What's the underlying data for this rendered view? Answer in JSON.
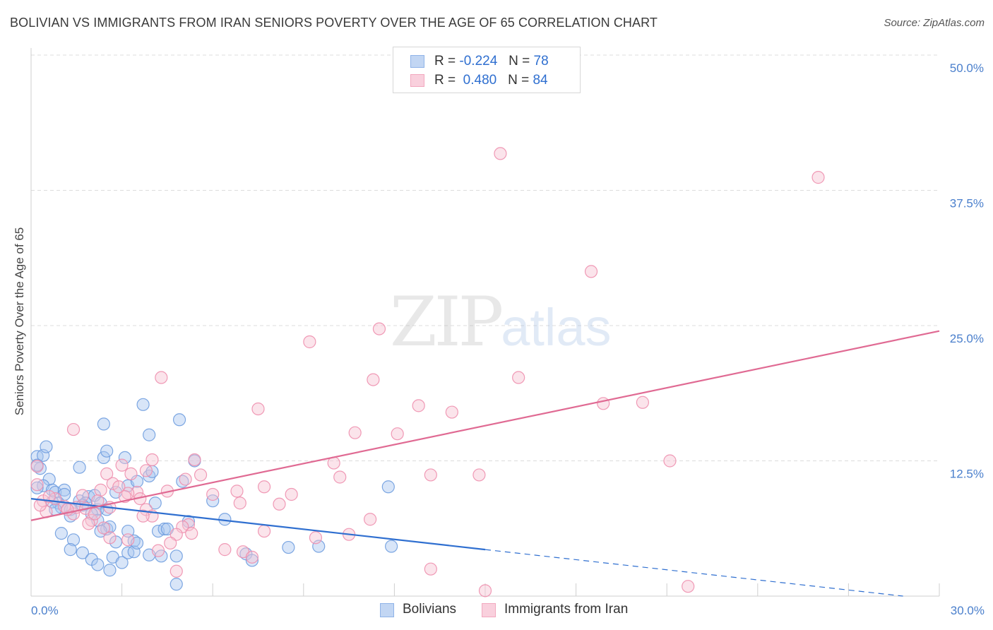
{
  "title": "BOLIVIAN VS IMMIGRANTS FROM IRAN SENIORS POVERTY OVER THE AGE OF 65 CORRELATION CHART",
  "source": "Source: ZipAtlas.com",
  "watermark": {
    "zip": "ZIP",
    "atlas": "atlas"
  },
  "legend": {
    "rows": [
      {
        "r_label": "R =",
        "r_value": "-0.224",
        "n_label": "N =",
        "n_value": "78",
        "color": "#8fb3e8"
      },
      {
        "r_label": "R =",
        "r_value": "0.480",
        "n_label": "N =",
        "n_value": "84",
        "color": "#f2a8bf"
      }
    ]
  },
  "bottom_legend": [
    {
      "label": "Bolivians",
      "color": "#8fb3e8"
    },
    {
      "label": "Immigrants from Iran",
      "color": "#f2a8bf"
    }
  ],
  "colors": {
    "bolivians_fill": "#a9c6ef",
    "bolivians_stroke": "#6f9ddf",
    "bolivians_line": "#2f6fd0",
    "iran_fill": "#f7c3d3",
    "iran_stroke": "#ee8fae",
    "iran_line": "#e06a93",
    "grid": "#dcdcdc",
    "axis_text": "#4a7fcc"
  },
  "chart_data": {
    "type": "scatter",
    "title": "BOLIVIAN VS IMMIGRANTS FROM IRAN SENIORS POVERTY OVER THE AGE OF 65 CORRELATION CHART",
    "xlabel": "",
    "ylabel": "Seniors Poverty Over the Age of 65",
    "xlim": [
      0,
      30
    ],
    "ylim": [
      0,
      50
    ],
    "x_tick_labels": [
      "0.0%",
      "30.0%"
    ],
    "y_ticks": [
      12.5,
      25.0,
      37.5,
      50.0
    ],
    "y_tick_labels": [
      "12.5%",
      "25.0%",
      "37.5%",
      "50.0%"
    ],
    "grid": true,
    "legend_position": "top-center",
    "series": [
      {
        "name": "Bolivians",
        "r": -0.224,
        "n": 78,
        "trend": {
          "x0": 0,
          "y0": 9.0,
          "x1": 15.0,
          "y1": 4.3,
          "dashed_to_x": 28.8,
          "dashed_to_y": 0.0
        },
        "points": [
          [
            0.2,
            12.9
          ],
          [
            0.4,
            13.0
          ],
          [
            0.5,
            13.8
          ],
          [
            0.3,
            11.8
          ],
          [
            0.6,
            10.8
          ],
          [
            0.4,
            10.2
          ],
          [
            0.2,
            10.0
          ],
          [
            0.7,
            9.8
          ],
          [
            0.8,
            9.6
          ],
          [
            1.1,
            9.8
          ],
          [
            1.1,
            9.4
          ],
          [
            0.9,
            8.6
          ],
          [
            0.7,
            8.7
          ],
          [
            1.0,
            8.2
          ],
          [
            0.8,
            8.0
          ],
          [
            1.3,
            8.0
          ],
          [
            1.6,
            8.8
          ],
          [
            1.9,
            9.2
          ],
          [
            1.8,
            8.6
          ],
          [
            2.1,
            9.3
          ],
          [
            1.7,
            8.4
          ],
          [
            2.2,
            8.0
          ],
          [
            2.3,
            8.6
          ],
          [
            2.5,
            8.0
          ],
          [
            1.3,
            7.4
          ],
          [
            2.0,
            7.6
          ],
          [
            2.2,
            7.0
          ],
          [
            2.5,
            6.2
          ],
          [
            2.6,
            6.4
          ],
          [
            1.0,
            5.8
          ],
          [
            1.4,
            5.2
          ],
          [
            1.3,
            4.3
          ],
          [
            1.7,
            4.0
          ],
          [
            2.0,
            3.4
          ],
          [
            2.2,
            2.9
          ],
          [
            2.6,
            2.4
          ],
          [
            2.7,
            3.6
          ],
          [
            3.0,
            3.1
          ],
          [
            3.2,
            4.0
          ],
          [
            3.4,
            4.1
          ],
          [
            3.4,
            5.1
          ],
          [
            3.2,
            6.0
          ],
          [
            2.8,
            5.0
          ],
          [
            1.6,
            11.9
          ],
          [
            2.4,
            12.8
          ],
          [
            2.5,
            13.4
          ],
          [
            3.1,
            12.8
          ],
          [
            3.2,
            10.2
          ],
          [
            2.8,
            9.6
          ],
          [
            3.5,
            10.6
          ],
          [
            3.9,
            11.1
          ],
          [
            4.0,
            11.5
          ],
          [
            4.1,
            8.6
          ],
          [
            4.2,
            6.0
          ],
          [
            4.4,
            6.2
          ],
          [
            4.3,
            3.7
          ],
          [
            3.9,
            3.8
          ],
          [
            4.8,
            3.7
          ],
          [
            5.2,
            6.9
          ],
          [
            5.4,
            12.5
          ],
          [
            5.0,
            10.6
          ],
          [
            4.9,
            16.3
          ],
          [
            3.9,
            14.9
          ],
          [
            3.7,
            17.7
          ],
          [
            2.4,
            15.9
          ],
          [
            6.0,
            8.8
          ],
          [
            6.4,
            7.1
          ],
          [
            7.1,
            3.9
          ],
          [
            7.3,
            3.3
          ],
          [
            8.5,
            4.5
          ],
          [
            9.5,
            4.6
          ],
          [
            11.8,
            10.1
          ],
          [
            11.9,
            4.6
          ],
          [
            4.8,
            1.1
          ],
          [
            4.5,
            6.2
          ],
          [
            3.5,
            4.9
          ],
          [
            2.3,
            6.0
          ],
          [
            0.2,
            12.1
          ]
        ]
      },
      {
        "name": "Immigrants from Iran",
        "r": 0.48,
        "n": 84,
        "trend": {
          "x0": 0,
          "y0": 7.0,
          "x1": 30.0,
          "y1": 24.5
        },
        "points": [
          [
            15.5,
            40.9
          ],
          [
            26.0,
            38.7
          ],
          [
            18.5,
            30.0
          ],
          [
            11.5,
            24.7
          ],
          [
            9.2,
            23.5
          ],
          [
            4.3,
            20.2
          ],
          [
            11.3,
            20.0
          ],
          [
            16.1,
            20.2
          ],
          [
            7.5,
            17.3
          ],
          [
            12.8,
            17.6
          ],
          [
            13.9,
            17.0
          ],
          [
            18.9,
            17.8
          ],
          [
            20.2,
            17.9
          ],
          [
            1.4,
            15.4
          ],
          [
            10.7,
            15.1
          ],
          [
            12.1,
            15.0
          ],
          [
            21.1,
            12.5
          ],
          [
            10.0,
            12.3
          ],
          [
            5.4,
            12.6
          ],
          [
            3.0,
            12.1
          ],
          [
            3.8,
            11.6
          ],
          [
            5.6,
            11.2
          ],
          [
            10.2,
            11.0
          ],
          [
            13.2,
            11.2
          ],
          [
            14.8,
            11.2
          ],
          [
            2.5,
            11.3
          ],
          [
            4.0,
            12.6
          ],
          [
            3.3,
            11.3
          ],
          [
            2.7,
            10.4
          ],
          [
            2.3,
            9.8
          ],
          [
            3.5,
            9.6
          ],
          [
            4.5,
            9.7
          ],
          [
            6.8,
            9.7
          ],
          [
            7.7,
            10.1
          ],
          [
            8.6,
            9.4
          ],
          [
            3.2,
            9.5
          ],
          [
            3.6,
            9.0
          ],
          [
            2.6,
            8.2
          ],
          [
            3.8,
            8.0
          ],
          [
            6.9,
            8.6
          ],
          [
            8.2,
            8.5
          ],
          [
            4.0,
            7.4
          ],
          [
            5.2,
            6.6
          ],
          [
            5.0,
            6.4
          ],
          [
            4.8,
            5.7
          ],
          [
            5.3,
            5.8
          ],
          [
            7.7,
            6.0
          ],
          [
            10.5,
            5.7
          ],
          [
            11.2,
            7.1
          ],
          [
            9.4,
            5.4
          ],
          [
            2.6,
            5.4
          ],
          [
            3.2,
            5.2
          ],
          [
            4.6,
            4.9
          ],
          [
            4.2,
            4.2
          ],
          [
            6.4,
            4.3
          ],
          [
            7.0,
            4.1
          ],
          [
            7.3,
            3.6
          ],
          [
            13.2,
            2.5
          ],
          [
            15.0,
            0.5
          ],
          [
            21.7,
            0.9
          ],
          [
            4.8,
            2.3
          ],
          [
            0.2,
            12.0
          ],
          [
            0.2,
            10.3
          ],
          [
            0.4,
            8.8
          ],
          [
            0.5,
            7.8
          ],
          [
            1.1,
            8.3
          ],
          [
            1.4,
            7.6
          ],
          [
            1.5,
            8.2
          ],
          [
            1.8,
            8.1
          ],
          [
            2.0,
            7.0
          ],
          [
            2.2,
            8.8
          ],
          [
            1.9,
            6.7
          ],
          [
            2.4,
            6.3
          ],
          [
            0.8,
            9.0
          ],
          [
            1.2,
            8.0
          ],
          [
            1.7,
            9.3
          ],
          [
            2.9,
            10.1
          ],
          [
            3.1,
            9.2
          ],
          [
            5.1,
            10.8
          ],
          [
            6.0,
            9.4
          ],
          [
            3.7,
            7.4
          ],
          [
            2.1,
            7.6
          ],
          [
            0.3,
            8.4
          ],
          [
            0.6,
            9.2
          ]
        ]
      }
    ]
  }
}
